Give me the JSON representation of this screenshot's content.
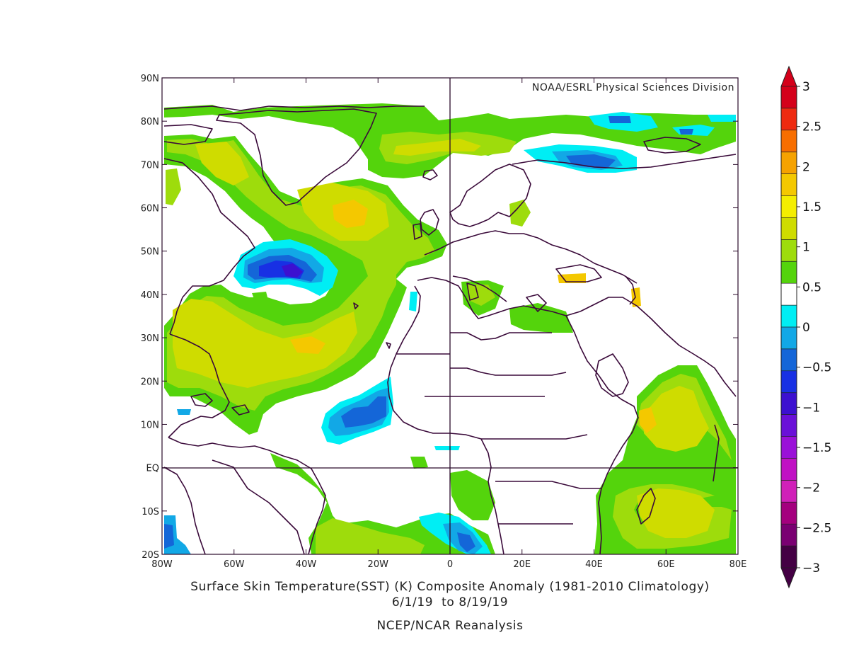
{
  "map": {
    "credit": "NOAA/ESRL Physical Sciences Division",
    "caption_line1": "Surface Skin Temperature(SST) (K) Composite Anomaly (1981-2010 Climatology)",
    "caption_line2": "6/1/19  to 8/19/19",
    "caption_line3": "NCEP/NCAR Reanalysis",
    "lon_ticks": [
      "80W",
      "60W",
      "40W",
      "20W",
      "0",
      "20E",
      "40E",
      "60E",
      "80E"
    ],
    "lat_ticks": [
      "90N",
      "80N",
      "70N",
      "60N",
      "50N",
      "40N",
      "30N",
      "20N",
      "10N",
      "EQ",
      "10S",
      "20S"
    ]
  },
  "colorbar": {
    "labels": [
      "3",
      "2.5",
      "2",
      "1.5",
      "1",
      "0.5",
      "0",
      "-0.5",
      "-1",
      "-1.5",
      "-2",
      "-2.5",
      "-3"
    ],
    "colors": [
      "#d4001a",
      "#ee2a10",
      "#f76e00",
      "#f5a200",
      "#f4c800",
      "#f4ee00",
      "#cfdc00",
      "#9edc0c",
      "#54d40c",
      "#ffffff",
      "#00eef4",
      "#12a8e6",
      "#1466d8",
      "#1830e4",
      "#3c10d0",
      "#6a10d8",
      "#9a10d8",
      "#c010c4",
      "#d020b8",
      "#a4007e",
      "#7a0072",
      "#440044"
    ],
    "top_tip": "#d4001a",
    "bottom_tip": "#440044"
  },
  "palette": {
    "green": "#54d40c",
    "lime": "#9edc0c",
    "olive": "#cfdc00",
    "yellow": "#f4c800",
    "cyan": "#00eef4",
    "lightblue": "#12a8e6",
    "blue": "#1466d8",
    "darkblue": "#1830e4",
    "indigo": "#3c10d0",
    "coast": "#3a0a3a"
  }
}
